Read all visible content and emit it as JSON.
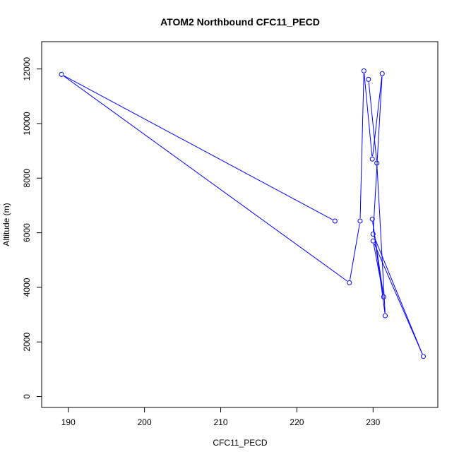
{
  "chart_data": {
    "type": "line",
    "title": "ATOM2 Northbound CFC11_PECD",
    "xlabel": "CFC11_PECD",
    "ylabel": "Altitude (m)",
    "xlim": [
      186.5,
      238.5
    ],
    "ylim": [
      -400,
      13000
    ],
    "xticks": [
      190,
      200,
      210,
      220,
      230
    ],
    "yticks": [
      0,
      2000,
      4000,
      6000,
      8000,
      10000,
      12000
    ],
    "grid": false,
    "series": [
      {
        "color": "#0000ff",
        "markers": "open-circle",
        "points": [
          {
            "x": 225.0,
            "y": 6430
          },
          {
            "x": 189.1,
            "y": 11800
          },
          {
            "x": 226.9,
            "y": 4170
          },
          {
            "x": 228.3,
            "y": 6430
          },
          {
            "x": 228.8,
            "y": 11930
          },
          {
            "x": 229.9,
            "y": 8700
          },
          {
            "x": 231.2,
            "y": 11830
          },
          {
            "x": 230.0,
            "y": 5950
          },
          {
            "x": 236.6,
            "y": 1470
          },
          {
            "x": 230.0,
            "y": 5700
          },
          {
            "x": 231.4,
            "y": 3650
          },
          {
            "x": 229.9,
            "y": 6500
          },
          {
            "x": 231.6,
            "y": 2960
          },
          {
            "x": 230.5,
            "y": 8550
          },
          {
            "x": 229.4,
            "y": 11620
          }
        ]
      }
    ]
  }
}
